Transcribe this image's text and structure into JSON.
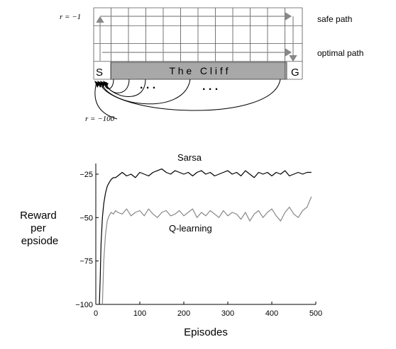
{
  "diagram": {
    "grid_cols": 12,
    "grid_rows": 4,
    "reward_step_label": "r = −1",
    "reward_cliff_label": "r = −100",
    "safe_path_label": "safe path",
    "optimal_path_label": "optimal path",
    "start_label": "S",
    "goal_label": "G",
    "cliff_label": "T h e   C l i f f",
    "ellipsis_left": ". . .",
    "ellipsis_right": ". . .",
    "colors": {
      "grid": "#555555",
      "cliff": "#a8a8a8",
      "arrow": "#888888",
      "curve": "#000000"
    }
  },
  "chart_data": {
    "type": "line",
    "title": "",
    "xlabel": "Episodes",
    "ylabel": "Reward\nper\nepsiode",
    "xlim": [
      0,
      500
    ],
    "ylim": [
      -100,
      -20
    ],
    "xticks": [
      0,
      100,
      200,
      300,
      400,
      500
    ],
    "yticks": [
      -25,
      -50,
      -75,
      -100
    ],
    "grid": false,
    "series": [
      {
        "name": "Sarsa",
        "color": "#000000",
        "x": [
          8,
          10,
          12,
          15,
          18,
          22,
          26,
          30,
          35,
          40,
          45,
          50,
          60,
          70,
          80,
          90,
          100,
          110,
          120,
          130,
          140,
          150,
          160,
          170,
          180,
          190,
          200,
          210,
          220,
          230,
          240,
          250,
          260,
          270,
          280,
          290,
          300,
          310,
          320,
          330,
          340,
          350,
          360,
          370,
          380,
          390,
          400,
          410,
          420,
          430,
          440,
          450,
          460,
          470,
          480,
          490
        ],
        "y": [
          -100,
          -85,
          -65,
          -50,
          -42,
          -36,
          -32,
          -30,
          -28,
          -27,
          -27,
          -26,
          -24,
          -26,
          -25,
          -27,
          -24,
          -25,
          -26,
          -24,
          -23,
          -22,
          -24,
          -25,
          -23,
          -24,
          -25,
          -24,
          -26,
          -24,
          -23,
          -25,
          -24,
          -26,
          -25,
          -24,
          -23,
          -25,
          -24,
          -26,
          -23,
          -25,
          -27,
          -24,
          -25,
          -24,
          -26,
          -24,
          -25,
          -23,
          -26,
          -25,
          -24,
          -25,
          -24,
          -24
        ]
      },
      {
        "name": "Q-learning",
        "color": "#888888",
        "x": [
          15,
          18,
          22,
          26,
          30,
          35,
          40,
          45,
          50,
          60,
          70,
          80,
          90,
          100,
          110,
          120,
          130,
          140,
          150,
          160,
          170,
          180,
          190,
          200,
          210,
          220,
          230,
          240,
          250,
          260,
          270,
          280,
          290,
          300,
          310,
          320,
          330,
          340,
          350,
          360,
          370,
          380,
          390,
          400,
          410,
          420,
          430,
          440,
          450,
          460,
          470,
          480,
          490
        ],
        "y": [
          -100,
          -75,
          -60,
          -52,
          -49,
          -47,
          -48,
          -46,
          -47,
          -48,
          -45,
          -49,
          -47,
          -46,
          -49,
          -45,
          -48,
          -50,
          -47,
          -46,
          -49,
          -48,
          -46,
          -49,
          -47,
          -45,
          -50,
          -47,
          -49,
          -46,
          -48,
          -50,
          -46,
          -49,
          -47,
          -48,
          -51,
          -47,
          -52,
          -48,
          -46,
          -50,
          -47,
          -45,
          -49,
          -52,
          -47,
          -44,
          -48,
          -50,
          -46,
          -44,
          -38
        ]
      }
    ]
  }
}
